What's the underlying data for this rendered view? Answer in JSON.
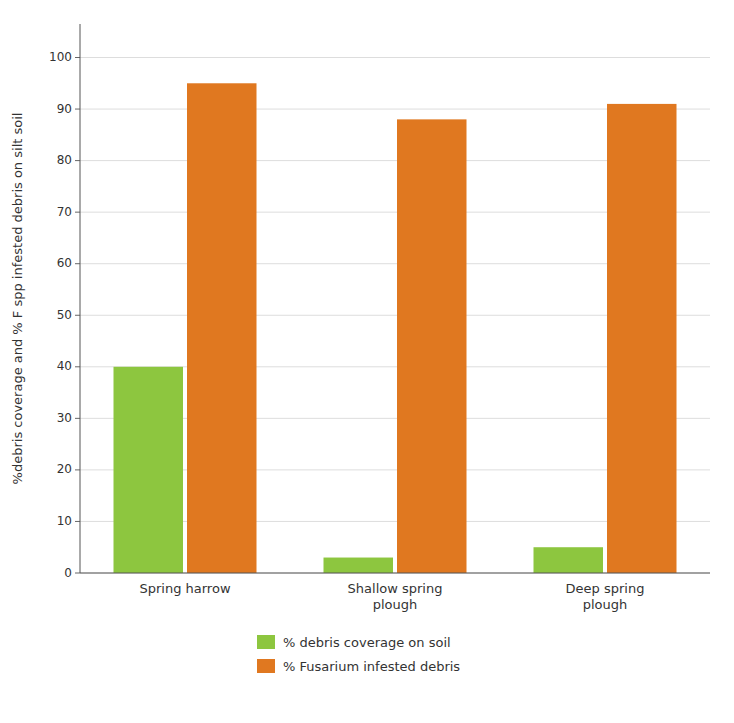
{
  "chart_data": {
    "type": "bar",
    "categories": [
      "Spring harrow",
      "Shallow spring\nplough",
      "Deep spring\nplough"
    ],
    "series": [
      {
        "name": "% debris coverage on soil",
        "color": "#8DC63F",
        "values": [
          40,
          3,
          5
        ]
      },
      {
        "name": "% Fusarium infested debris",
        "color": "#E07820",
        "values": [
          95,
          88,
          91
        ]
      }
    ],
    "ylabel": "%debris coverage and % F spp infested debris  on silt soil",
    "ylim": [
      0,
      106.5
    ],
    "yticks": [
      0,
      10,
      20,
      30,
      40,
      50,
      60,
      70,
      80,
      90,
      100
    ],
    "grid": true,
    "legend": "bottom"
  }
}
